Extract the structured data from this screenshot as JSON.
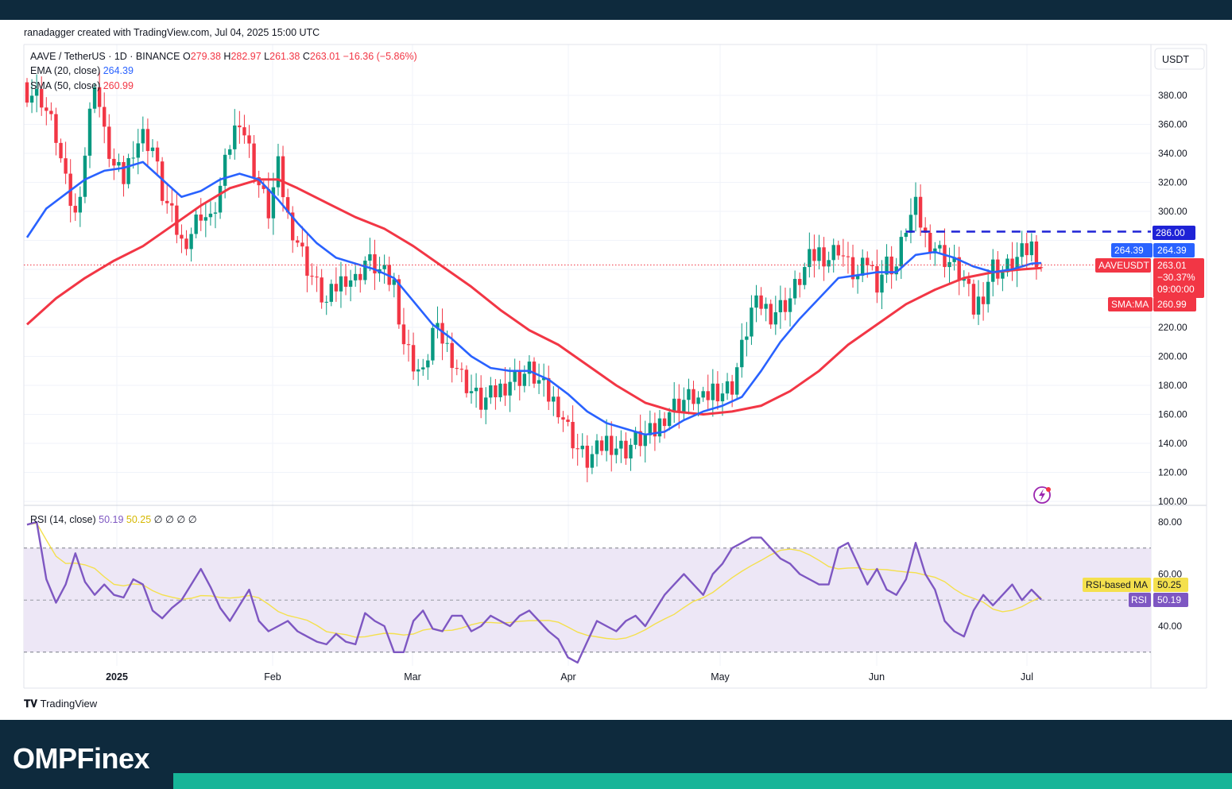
{
  "credit": "ranadagger created with TradingView.com, Jul 04, 2025 15:00 UTC",
  "header": {
    "symbol": "AAVE / TetherUS · 1D · BINANCE",
    "ohlc": [
      {
        "k": "O",
        "v": "279.38"
      },
      {
        "k": "H",
        "v": "282.97"
      },
      {
        "k": "L",
        "v": "261.38"
      },
      {
        "k": "C",
        "v": "263.01"
      }
    ],
    "change": "−16.36 (−5.86%)",
    "ema_label": "EMA (20, close)",
    "ema_value": "264.39",
    "sma_label": "SMA (50, close)",
    "sma_value": "260.99"
  },
  "currency": "USDT",
  "tags": {
    "level": "286.00",
    "ema_name": "EMA",
    "ema": "264.39",
    "symbol_name": "AAVEUSDT",
    "last": "263.01",
    "pct": "−30.37%",
    "countdown": "09:00:00",
    "sma_name": "SMA:MA",
    "sma": "260.99",
    "rsi_ma_name": "RSI-based MA",
    "rsi_ma": "50.25",
    "rsi_name": "RSI",
    "rsi": "50.19"
  },
  "rsi_header": {
    "label": "RSI (14, close)",
    "value": "50.19",
    "ma": "50.25",
    "extras": [
      "∅",
      "∅",
      "∅",
      "∅"
    ]
  },
  "brand": {
    "tradingview": "TradingView",
    "footer_logo": "OMPFinex"
  },
  "colors": {
    "up": "#089981",
    "down": "#f23645",
    "ema": "#2962ff",
    "sma": "#f23645",
    "rsi": "#7e57c2",
    "rsi_ma": "#f4e04d",
    "band": "#ede7f6"
  },
  "chart_data": {
    "type": "candlestick",
    "x_axis_labels": [
      "2025",
      "Feb",
      "Mar",
      "Apr",
      "May",
      "Jun",
      "Jul"
    ],
    "y_axis_ticks": [
      "100.00",
      "120.00",
      "140.00",
      "160.00",
      "180.00",
      "200.00",
      "220.00",
      "300.00",
      "320.00",
      "340.00",
      "360.00",
      "380.00"
    ],
    "ylim": [
      100,
      400
    ],
    "horizontal_level": 286,
    "price_close_path": [
      [
        0,
        383
      ],
      [
        3,
        378
      ],
      [
        6,
        352
      ],
      [
        8,
        318
      ],
      [
        10,
        296
      ],
      [
        12,
        340
      ],
      [
        14,
        392
      ],
      [
        16,
        352
      ],
      [
        18,
        330
      ],
      [
        20,
        322
      ],
      [
        22,
        345
      ],
      [
        24,
        352
      ],
      [
        26,
        344
      ],
      [
        28,
        312
      ],
      [
        30,
        296
      ],
      [
        32,
        278
      ],
      [
        34,
        286
      ],
      [
        36,
        300
      ],
      [
        38,
        292
      ],
      [
        40,
        316
      ],
      [
        42,
        346
      ],
      [
        44,
        366
      ],
      [
        46,
        342
      ],
      [
        48,
        318
      ],
      [
        50,
        300
      ],
      [
        52,
        330
      ],
      [
        54,
        296
      ],
      [
        56,
        280
      ],
      [
        58,
        262
      ],
      [
        60,
        248
      ],
      [
        62,
        236
      ],
      [
        64,
        248
      ],
      [
        66,
        256
      ],
      [
        68,
        252
      ],
      [
        70,
        266
      ],
      [
        72,
        262
      ],
      [
        74,
        255
      ],
      [
        76,
        250
      ],
      [
        78,
        210
      ],
      [
        80,
        196
      ],
      [
        82,
        186
      ],
      [
        84,
        218
      ],
      [
        86,
        212
      ],
      [
        88,
        200
      ],
      [
        90,
        186
      ],
      [
        92,
        176
      ],
      [
        94,
        168
      ],
      [
        96,
        172
      ],
      [
        98,
        178
      ],
      [
        100,
        184
      ],
      [
        102,
        186
      ],
      [
        104,
        190
      ],
      [
        106,
        182
      ],
      [
        108,
        172
      ],
      [
        110,
        166
      ],
      [
        112,
        150
      ],
      [
        114,
        136
      ],
      [
        116,
        128
      ],
      [
        118,
        134
      ],
      [
        120,
        142
      ],
      [
        122,
        138
      ],
      [
        124,
        136
      ],
      [
        126,
        142
      ],
      [
        128,
        144
      ],
      [
        130,
        148
      ],
      [
        132,
        160
      ],
      [
        134,
        166
      ],
      [
        136,
        170
      ],
      [
        138,
        172
      ],
      [
        140,
        168
      ],
      [
        142,
        178
      ],
      [
        144,
        176
      ],
      [
        146,
        180
      ],
      [
        148,
        205
      ],
      [
        150,
        232
      ],
      [
        152,
        236
      ],
      [
        154,
        230
      ],
      [
        156,
        234
      ],
      [
        158,
        240
      ],
      [
        160,
        254
      ],
      [
        162,
        266
      ],
      [
        164,
        272
      ],
      [
        166,
        268
      ],
      [
        168,
        276
      ],
      [
        170,
        262
      ],
      [
        172,
        254
      ],
      [
        174,
        266
      ],
      [
        176,
        252
      ],
      [
        178,
        264
      ],
      [
        180,
        262
      ],
      [
        182,
        290
      ],
      [
        184,
        302
      ],
      [
        186,
        282
      ],
      [
        188,
        276
      ],
      [
        190,
        268
      ],
      [
        192,
        262
      ],
      [
        194,
        252
      ],
      [
        196,
        232
      ],
      [
        198,
        244
      ],
      [
        200,
        262
      ],
      [
        202,
        258
      ],
      [
        204,
        264
      ],
      [
        206,
        270
      ],
      [
        208,
        276
      ],
      [
        210,
        263
      ]
    ],
    "ema20_path": [
      [
        0,
        282
      ],
      [
        4,
        302
      ],
      [
        8,
        312
      ],
      [
        12,
        322
      ],
      [
        16,
        328
      ],
      [
        20,
        330
      ],
      [
        24,
        334
      ],
      [
        28,
        322
      ],
      [
        32,
        310
      ],
      [
        36,
        314
      ],
      [
        40,
        322
      ],
      [
        44,
        326
      ],
      [
        48,
        322
      ],
      [
        52,
        308
      ],
      [
        56,
        292
      ],
      [
        60,
        278
      ],
      [
        64,
        268
      ],
      [
        68,
        264
      ],
      [
        72,
        260
      ],
      [
        76,
        254
      ],
      [
        80,
        238
      ],
      [
        84,
        222
      ],
      [
        88,
        212
      ],
      [
        92,
        200
      ],
      [
        96,
        192
      ],
      [
        100,
        190
      ],
      [
        104,
        190
      ],
      [
        108,
        184
      ],
      [
        112,
        174
      ],
      [
        116,
        162
      ],
      [
        120,
        154
      ],
      [
        124,
        150
      ],
      [
        128,
        146
      ],
      [
        132,
        148
      ],
      [
        136,
        156
      ],
      [
        140,
        162
      ],
      [
        144,
        166
      ],
      [
        148,
        172
      ],
      [
        152,
        190
      ],
      [
        156,
        210
      ],
      [
        160,
        226
      ],
      [
        164,
        240
      ],
      [
        168,
        254
      ],
      [
        172,
        256
      ],
      [
        176,
        258
      ],
      [
        180,
        258
      ],
      [
        184,
        270
      ],
      [
        188,
        272
      ],
      [
        192,
        268
      ],
      [
        196,
        262
      ],
      [
        200,
        258
      ],
      [
        204,
        260
      ],
      [
        208,
        264
      ],
      [
        210,
        264.39
      ]
    ],
    "sma50_path": [
      [
        0,
        222
      ],
      [
        6,
        240
      ],
      [
        12,
        254
      ],
      [
        18,
        266
      ],
      [
        24,
        276
      ],
      [
        30,
        290
      ],
      [
        36,
        304
      ],
      [
        42,
        316
      ],
      [
        48,
        322
      ],
      [
        52,
        322
      ],
      [
        56,
        316
      ],
      [
        62,
        306
      ],
      [
        68,
        296
      ],
      [
        74,
        288
      ],
      [
        80,
        276
      ],
      [
        86,
        262
      ],
      [
        92,
        248
      ],
      [
        98,
        232
      ],
      [
        104,
        218
      ],
      [
        110,
        208
      ],
      [
        116,
        194
      ],
      [
        122,
        180
      ],
      [
        128,
        168
      ],
      [
        134,
        162
      ],
      [
        140,
        160
      ],
      [
        146,
        162
      ],
      [
        152,
        166
      ],
      [
        158,
        176
      ],
      [
        164,
        190
      ],
      [
        170,
        208
      ],
      [
        176,
        222
      ],
      [
        182,
        236
      ],
      [
        188,
        246
      ],
      [
        194,
        254
      ],
      [
        200,
        258
      ],
      [
        206,
        260
      ],
      [
        210,
        260.99
      ]
    ],
    "rsi_path": [
      [
        0,
        79
      ],
      [
        2,
        80
      ],
      [
        4,
        58
      ],
      [
        6,
        49
      ],
      [
        8,
        56
      ],
      [
        10,
        68
      ],
      [
        12,
        57
      ],
      [
        14,
        52
      ],
      [
        16,
        56
      ],
      [
        18,
        52
      ],
      [
        20,
        51
      ],
      [
        22,
        58
      ],
      [
        24,
        56
      ],
      [
        26,
        46
      ],
      [
        28,
        43
      ],
      [
        30,
        47
      ],
      [
        32,
        50
      ],
      [
        34,
        56
      ],
      [
        36,
        62
      ],
      [
        38,
        55
      ],
      [
        40,
        47
      ],
      [
        42,
        42
      ],
      [
        44,
        48
      ],
      [
        46,
        54
      ],
      [
        48,
        42
      ],
      [
        50,
        38
      ],
      [
        52,
        40
      ],
      [
        54,
        42
      ],
      [
        56,
        38
      ],
      [
        58,
        36
      ],
      [
        60,
        34
      ],
      [
        62,
        33
      ],
      [
        64,
        37
      ],
      [
        66,
        34
      ],
      [
        68,
        33
      ],
      [
        70,
        45
      ],
      [
        72,
        42
      ],
      [
        74,
        40
      ],
      [
        76,
        30
      ],
      [
        78,
        30
      ],
      [
        80,
        42
      ],
      [
        82,
        46
      ],
      [
        84,
        39
      ],
      [
        86,
        38
      ],
      [
        88,
        44
      ],
      [
        90,
        44
      ],
      [
        92,
        38
      ],
      [
        94,
        40
      ],
      [
        96,
        44
      ],
      [
        98,
        42
      ],
      [
        100,
        40
      ],
      [
        102,
        44
      ],
      [
        104,
        46
      ],
      [
        106,
        42
      ],
      [
        108,
        38
      ],
      [
        110,
        35
      ],
      [
        112,
        28
      ],
      [
        114,
        26
      ],
      [
        116,
        34
      ],
      [
        118,
        42
      ],
      [
        120,
        40
      ],
      [
        122,
        38
      ],
      [
        124,
        42
      ],
      [
        126,
        44
      ],
      [
        128,
        40
      ],
      [
        130,
        46
      ],
      [
        132,
        52
      ],
      [
        134,
        56
      ],
      [
        136,
        60
      ],
      [
        138,
        56
      ],
      [
        140,
        52
      ],
      [
        142,
        60
      ],
      [
        144,
        64
      ],
      [
        146,
        70
      ],
      [
        148,
        72
      ],
      [
        150,
        74
      ],
      [
        152,
        74
      ],
      [
        154,
        70
      ],
      [
        156,
        66
      ],
      [
        158,
        64
      ],
      [
        160,
        60
      ],
      [
        162,
        58
      ],
      [
        164,
        56
      ],
      [
        166,
        56
      ],
      [
        168,
        70
      ],
      [
        170,
        72
      ],
      [
        172,
        64
      ],
      [
        174,
        56
      ],
      [
        176,
        62
      ],
      [
        178,
        54
      ],
      [
        180,
        52
      ],
      [
        182,
        58
      ],
      [
        184,
        72
      ],
      [
        186,
        60
      ],
      [
        188,
        54
      ],
      [
        190,
        42
      ],
      [
        192,
        38
      ],
      [
        194,
        36
      ],
      [
        196,
        46
      ],
      [
        198,
        52
      ],
      [
        200,
        48
      ],
      [
        202,
        52
      ],
      [
        204,
        56
      ],
      [
        206,
        50
      ],
      [
        208,
        54
      ],
      [
        210,
        50.19
      ]
    ],
    "rsi_ticks": [
      "40.00",
      "60.00",
      "80.00"
    ],
    "rsi_ylim": [
      20,
      85
    ],
    "rsi_bands": [
      30,
      70
    ]
  }
}
